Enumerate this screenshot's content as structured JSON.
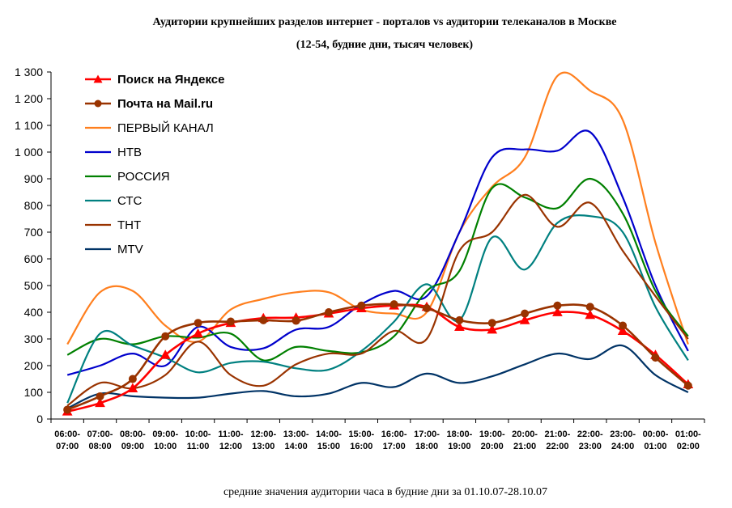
{
  "chart_data": {
    "type": "line",
    "title": "Аудитории крупнейших разделов интернет - порталов vs аудитории телеканалов в Москве",
    "subtitle": "(12-54, будние дни, тысяч человек)",
    "footnote": "средние значения аудитории часа в будние дни за 01.10.07-28.10.07",
    "ylim": [
      0,
      1300
    ],
    "yticks": [
      0,
      100,
      200,
      300,
      400,
      500,
      600,
      700,
      800,
      900,
      1000,
      1100,
      1200,
      1300
    ],
    "ytick_labels": [
      "0",
      "100",
      "200",
      "300",
      "400",
      "500",
      "600",
      "700",
      "800",
      "900",
      "1 000",
      "1 100",
      "1 200",
      "1 300"
    ],
    "grid": false,
    "legend_position": "top-left",
    "categories": [
      [
        "06:00-",
        "07:00"
      ],
      [
        "07:00-",
        "08:00"
      ],
      [
        "08:00-",
        "09:00"
      ],
      [
        "09:00-",
        "10:00"
      ],
      [
        "10:00-",
        "11:00"
      ],
      [
        "11:00-",
        "12:00"
      ],
      [
        "12:00-",
        "13:00"
      ],
      [
        "13:00-",
        "14:00"
      ],
      [
        "14:00-",
        "15:00"
      ],
      [
        "15:00-",
        "16:00"
      ],
      [
        "16:00-",
        "17:00"
      ],
      [
        "17:00-",
        "18:00"
      ],
      [
        "18:00-",
        "19:00"
      ],
      [
        "19:00-",
        "20:00"
      ],
      [
        "20:00-",
        "21:00"
      ],
      [
        "21:00-",
        "22:00"
      ],
      [
        "22:00-",
        "23:00"
      ],
      [
        "23:00-",
        "24:00"
      ],
      [
        "00:00-",
        "01:00"
      ],
      [
        "01:00-",
        "02:00"
      ]
    ],
    "series": [
      {
        "name": "Поиск на Яндексе",
        "color": "#ff0000",
        "marker": "triangle",
        "bold": true,
        "values": [
          28,
          60,
          115,
          240,
          320,
          360,
          378,
          380,
          395,
          415,
          425,
          420,
          345,
          335,
          370,
          400,
          390,
          330,
          240,
          130
        ]
      },
      {
        "name": "Почта на Mail.ru",
        "color": "#993300",
        "marker": "circle",
        "bold": true,
        "values": [
          35,
          85,
          150,
          310,
          360,
          365,
          370,
          368,
          400,
          425,
          430,
          415,
          370,
          360,
          395,
          425,
          420,
          350,
          230,
          125
        ]
      },
      {
        "name": "ПЕРВЫЙ КАНАЛ",
        "color": "#ff7f1e",
        "marker": "none",
        "bold": false,
        "values": [
          280,
          475,
          480,
          350,
          290,
          410,
          450,
          475,
          475,
          410,
          395,
          400,
          700,
          870,
          980,
          1285,
          1230,
          1120,
          660,
          280
        ]
      },
      {
        "name": "НТВ",
        "color": "#0000cc",
        "marker": "none",
        "bold": false,
        "values": [
          165,
          200,
          245,
          200,
          345,
          270,
          265,
          335,
          345,
          430,
          480,
          460,
          700,
          980,
          1010,
          1005,
          1075,
          830,
          500,
          255
        ]
      },
      {
        "name": "РОССИЯ",
        "color": "#008000",
        "marker": "none",
        "bold": false,
        "values": [
          240,
          300,
          280,
          310,
          305,
          320,
          220,
          270,
          255,
          250,
          310,
          480,
          555,
          865,
          830,
          790,
          900,
          770,
          480,
          310
        ]
      },
      {
        "name": "СТС",
        "color": "#008080",
        "marker": "none",
        "bold": false,
        "values": [
          60,
          320,
          275,
          230,
          175,
          210,
          215,
          190,
          185,
          255,
          365,
          505,
          370,
          680,
          560,
          735,
          760,
          700,
          420,
          220
        ]
      },
      {
        "name": "ТНТ",
        "color": "#993300",
        "marker": "none",
        "bold": false,
        "values": [
          50,
          135,
          115,
          165,
          290,
          165,
          125,
          205,
          245,
          245,
          330,
          300,
          630,
          700,
          840,
          720,
          810,
          630,
          460,
          300
        ]
      },
      {
        "name": "MTV",
        "color": "#003366",
        "marker": "none",
        "bold": false,
        "values": [
          40,
          95,
          85,
          80,
          80,
          95,
          105,
          85,
          95,
          135,
          120,
          170,
          135,
          160,
          205,
          245,
          225,
          275,
          165,
          100
        ]
      }
    ]
  }
}
